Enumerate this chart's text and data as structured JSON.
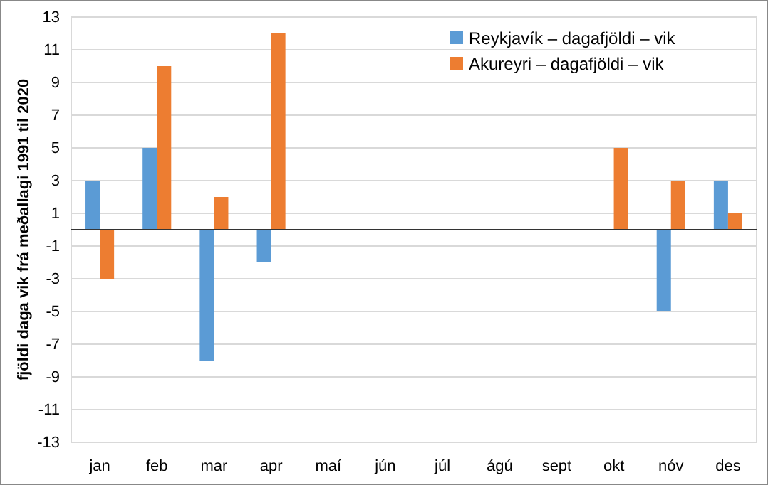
{
  "chart_data": {
    "type": "bar",
    "ylabel": "fjöldi daga vik frá meðallagi 1991 til 2020",
    "categories": [
      "jan",
      "feb",
      "mar",
      "apr",
      "maí",
      "jún",
      "júl",
      "ágú",
      "sept",
      "okt",
      "nóv",
      "des"
    ],
    "series": [
      {
        "name": "Reykjavík – dagafjöldi – vik",
        "color": "#5b9bd5",
        "values": [
          3,
          5,
          -8,
          -2,
          0,
          0,
          0,
          0,
          0,
          0,
          -5,
          3
        ]
      },
      {
        "name": "Akureyri – dagafjöldi – vik",
        "color": "#ed7d31",
        "values": [
          -3,
          10,
          2,
          12,
          0,
          0,
          0,
          0,
          0,
          5,
          3,
          1
        ]
      }
    ],
    "ylim": [
      -13,
      13
    ],
    "yticks": [
      -13,
      -11,
      -9,
      -7,
      -5,
      -3,
      -1,
      1,
      3,
      5,
      7,
      9,
      11,
      13
    ],
    "grid": "y",
    "legend": "top right"
  }
}
